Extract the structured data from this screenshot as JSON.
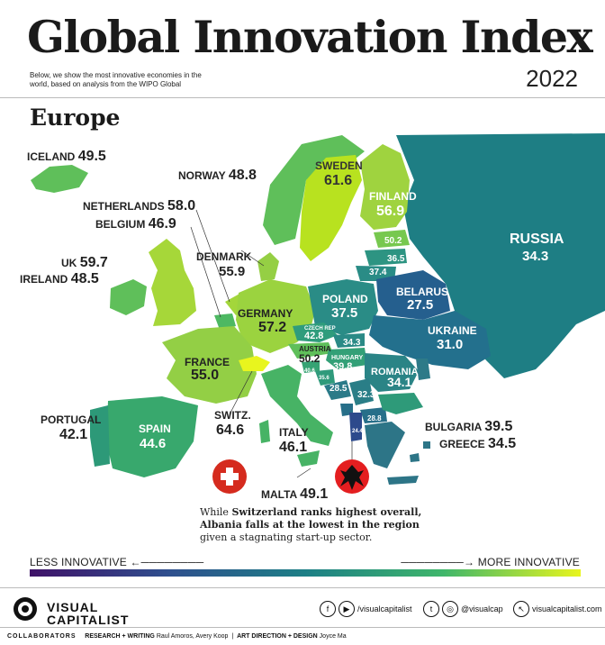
{
  "header": {
    "title": "Global Innovation Index",
    "subtitle": "Below, we show the most innovative economies in the world, based on analysis from the WIPO Global",
    "year": "2022",
    "region": "Europe"
  },
  "countries": [
    {
      "name": "ICELAND",
      "value": 49.5,
      "label": "49.5"
    },
    {
      "name": "NORWAY",
      "value": 48.8,
      "label": "48.8"
    },
    {
      "name": "SWEDEN",
      "value": 61.6,
      "label": "61.6"
    },
    {
      "name": "FINLAND",
      "value": 56.9,
      "label": "56.9"
    },
    {
      "name": "RUSSIA",
      "value": 34.3,
      "label": "34.3"
    },
    {
      "name": "NETHERLANDS",
      "value": 58.0,
      "label": "58.0"
    },
    {
      "name": "BELGIUM",
      "value": 46.9,
      "label": "46.9"
    },
    {
      "name": "DENMARK",
      "value": 55.9,
      "label": "55.9"
    },
    {
      "name": "UK",
      "value": 59.7,
      "label": "59.7"
    },
    {
      "name": "IRELAND",
      "value": 48.5,
      "label": "48.5"
    },
    {
      "name": "GERMANY",
      "value": 57.2,
      "label": "57.2"
    },
    {
      "name": "POLAND",
      "value": 37.5,
      "label": "37.5"
    },
    {
      "name": "BELARUS",
      "value": 27.5,
      "label": "27.5"
    },
    {
      "name": "UKRAINE",
      "value": 31.0,
      "label": "31.0"
    },
    {
      "name": "CZECH REP",
      "value": 42.8,
      "label": "42.8"
    },
    {
      "name": "AUSTRIA",
      "value": 50.2,
      "label": "50.2"
    },
    {
      "name": "HUNGARY",
      "value": 39.8,
      "label": "39.8"
    },
    {
      "name": "ROMANIA",
      "value": 34.1,
      "label": "34.1"
    },
    {
      "name": "FRANCE",
      "value": 55.0,
      "label": "55.0"
    },
    {
      "name": "SWITZ.",
      "value": 64.6,
      "label": "64.6"
    },
    {
      "name": "SPAIN",
      "value": 44.6,
      "label": "44.6"
    },
    {
      "name": "PORTUGAL",
      "value": 42.1,
      "label": "42.1"
    },
    {
      "name": "ITALY",
      "value": 46.1,
      "label": "46.1"
    },
    {
      "name": "MALTA",
      "value": 49.1,
      "label": "49.1"
    },
    {
      "name": "BULGARIA",
      "value": 39.5,
      "label": "39.5"
    },
    {
      "name": "GREECE",
      "value": 34.5,
      "label": "34.5"
    }
  ],
  "unlabeled_values": [
    {
      "value": 50.2,
      "label": "50.2"
    },
    {
      "value": 36.5,
      "label": "36.5"
    },
    {
      "value": 37.4,
      "label": "37.4"
    },
    {
      "value": 34.3,
      "label": "34.3"
    },
    {
      "value": 40.6,
      "label": "40.6"
    },
    {
      "value": 35.6,
      "label": "35.6"
    },
    {
      "value": 28.5,
      "label": "28.5"
    },
    {
      "value": 32.3,
      "label": "32.3"
    },
    {
      "value": 28.8,
      "label": "28.8"
    },
    {
      "value": 24.4,
      "label": "24.4"
    }
  ],
  "caption": {
    "pre": "While ",
    "bold1": "Switzerland ranks highest overall,",
    "bold2": "Albania falls at the lowest in the region",
    "post": "given a stagnating start-up sector."
  },
  "legend": {
    "less": "LESS INNOVATIVE",
    "more": "MORE INNOVATIVE",
    "colors": [
      "#3f1268",
      "#2f4f8e",
      "#1d7f86",
      "#3fb66b",
      "#e8f51e"
    ]
  },
  "footer": {
    "brand_line1": "VISUAL",
    "brand_line2": "CAPITALIST",
    "social1": "/visualcapitalist",
    "social2": "@visualcap",
    "website": "visualcapitalist.com",
    "collaborators_label": "COLLABORATORS",
    "research_label": "RESEARCH + WRITING",
    "research_names": "Raul Amoros, Avery Koop",
    "design_label": "ART DIRECTION + DESIGN",
    "design_names": "Joyce Ma"
  }
}
